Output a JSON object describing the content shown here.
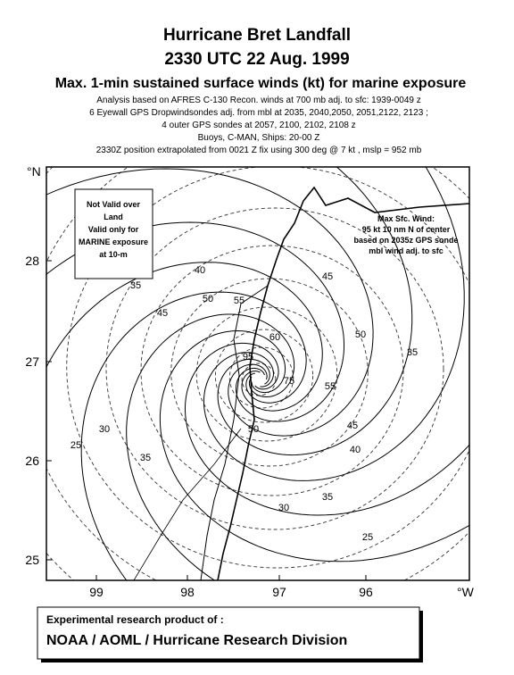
{
  "header": {
    "title": "Hurricane Bret Landfall",
    "time": "2330 UTC 22 Aug. 1999",
    "subtitle": "Max. 1-min sustained surface winds (kt) for marine exposure",
    "notes": [
      "Analysis based on AFRES C-130  Recon. winds at 700 mb adj. to sfc: 1939-0049 z",
      "6 Eyewall GPS Dropwindsondes adj. from mbl at 2035, 2040,2050, 2051,2122, 2123 ;",
      "4 outer GPS sondes at 2057, 2100, 2102, 2108 z",
      "Buoys, C-MAN, Ships: 20-00 Z",
      "2330Z  position extrapolated from 0021 Z fix  using 300 deg @ 7 kt , mslp = 952 mb"
    ]
  },
  "map": {
    "lat_unit": "°N",
    "lon_unit": "°W",
    "lat_ticks": [
      "28",
      "27",
      "26",
      "25"
    ],
    "lon_ticks": [
      "99",
      "98",
      "97",
      "96"
    ],
    "warning": [
      "Not Valid over",
      "Land",
      "Valid only for",
      "MARINE exposure",
      "at 10-m"
    ],
    "max_wind": [
      "Max Sfc. Wind:",
      "95 kt  10 nm N of center",
      "based on 2035z GPS sonde",
      "mbl wind adj. to sfc"
    ],
    "contour_labels": [
      "35",
      "40",
      "50",
      "45",
      "55",
      "45",
      "50",
      "35",
      "60",
      "95",
      "75",
      "55",
      "45",
      "40",
      "50",
      "35",
      "30",
      "25",
      "35",
      "30",
      "25"
    ]
  },
  "footer": {
    "line1": "Experimental research product of :",
    "line2": "NOAA / AOML / Hurricane Research Division"
  }
}
